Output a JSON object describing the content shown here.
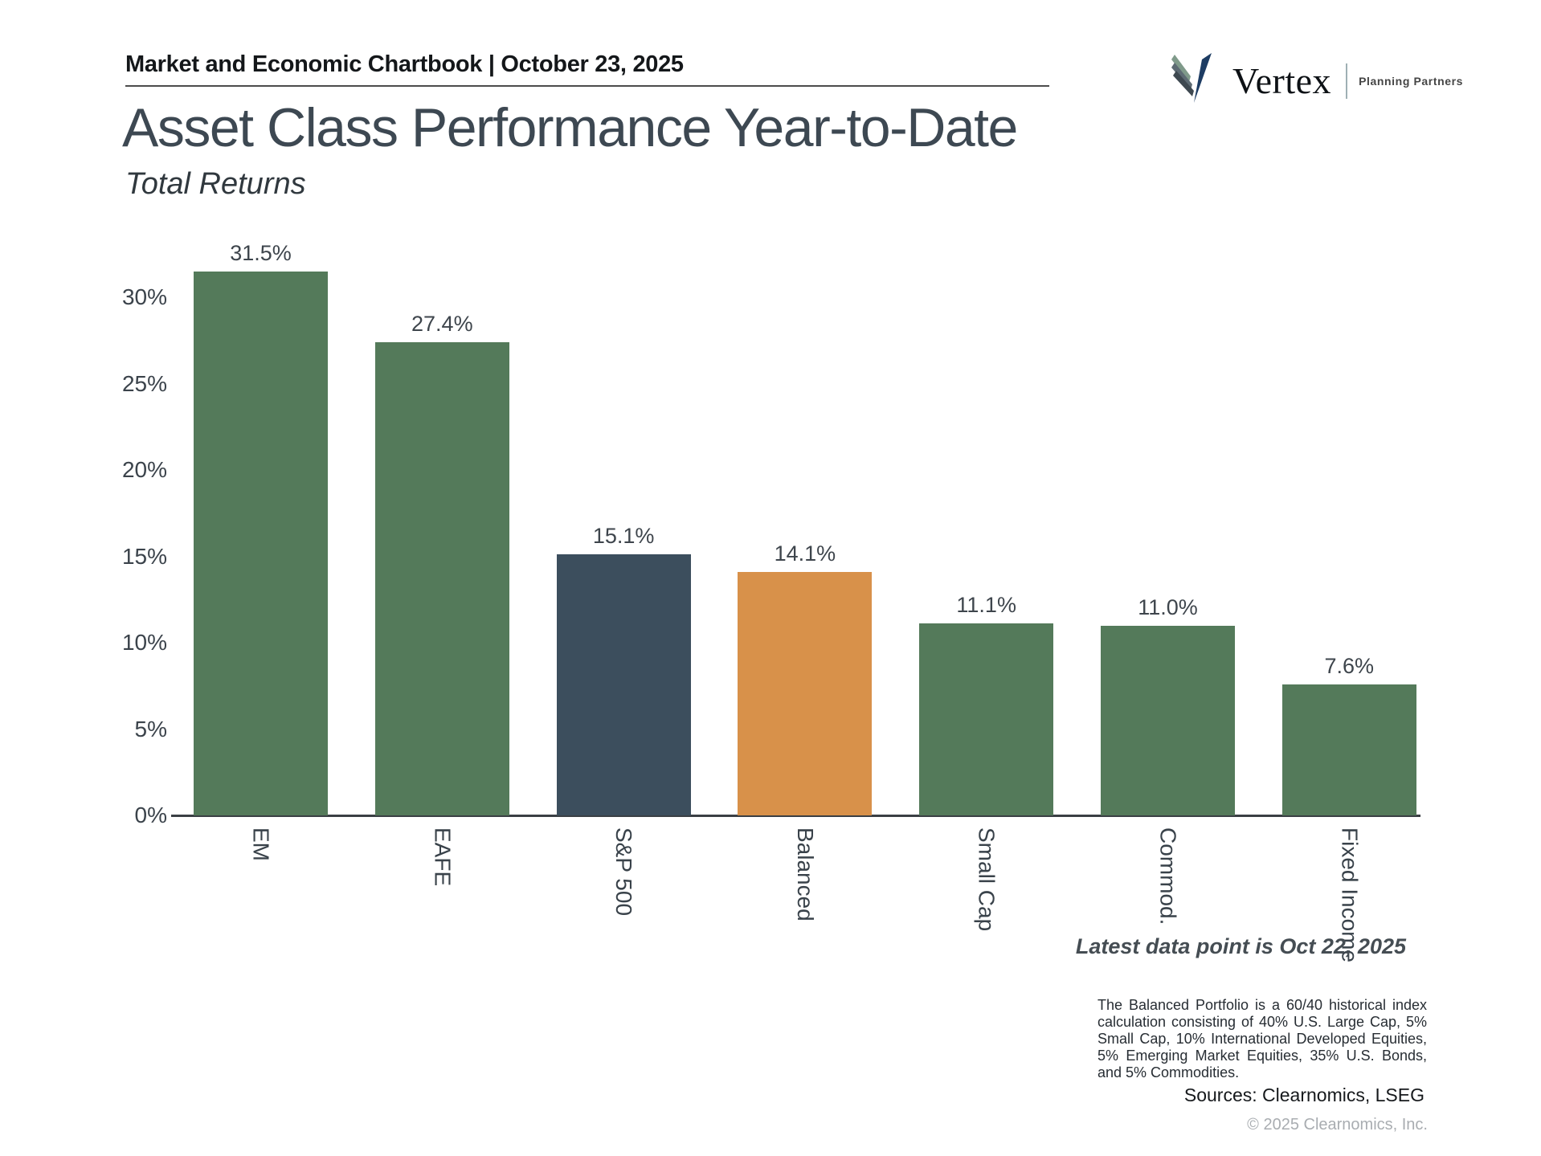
{
  "header": {
    "chartbook_label": "Market and Economic Chartbook | October 23, 2025"
  },
  "title": "Asset Class Performance Year-to-Date",
  "subtitle": "Total Returns",
  "logo": {
    "brand": "Vertex",
    "tagline": "Planning Partners"
  },
  "chart_data": {
    "type": "bar",
    "categories": [
      "EM",
      "EAFE",
      "S&P 500",
      "Balanced",
      "Small Cap",
      "Commod.",
      "Fixed Income"
    ],
    "values": [
      31.5,
      27.4,
      15.1,
      14.1,
      11.1,
      11.0,
      7.6
    ],
    "value_labels": [
      "31.5%",
      "27.4%",
      "15.1%",
      "14.1%",
      "11.1%",
      "11.0%",
      "7.6%"
    ],
    "bar_colors": [
      "#547a5a",
      "#547a5a",
      "#3c4e5d",
      "#d8914a",
      "#547a5a",
      "#547a5a",
      "#547a5a"
    ],
    "title": "Asset Class Performance Year-to-Date",
    "subtitle": "Total Returns",
    "xlabel": "",
    "ylabel": "",
    "yticks": [
      "0%",
      "5%",
      "10%",
      "15%",
      "20%",
      "25%",
      "30%"
    ],
    "ytick_values": [
      0,
      5,
      10,
      15,
      20,
      25,
      30
    ],
    "ylim": [
      0,
      33
    ],
    "grid": false,
    "legend": false,
    "bar_label_rotation_deg": 90
  },
  "notes": {
    "latest": "Latest data point is Oct 22, 2025",
    "footnote": "The Balanced Portfolio is a 60/40 historical index calculation consisting of 40% U.S. Large Cap, 5% Small Cap, 10% International Developed Equities, 5% Emerging Market Equities, 35% U.S. Bonds, and 5% Commodities.",
    "sources": "Sources: Clearnomics, LSEG",
    "copyright": "© 2025 Clearnomics, Inc."
  },
  "colors": {
    "green_bar": "#547a5a",
    "navy_bar": "#3c4e5d",
    "orange_bar": "#d8914a",
    "title_text": "#3d4852",
    "axis_line": "#3a3f44",
    "logo_navy": "#1d3c63",
    "logo_charcoal": "#3e4850",
    "logo_slate": "#5d6a73",
    "logo_sage": "#7f9a8a"
  }
}
